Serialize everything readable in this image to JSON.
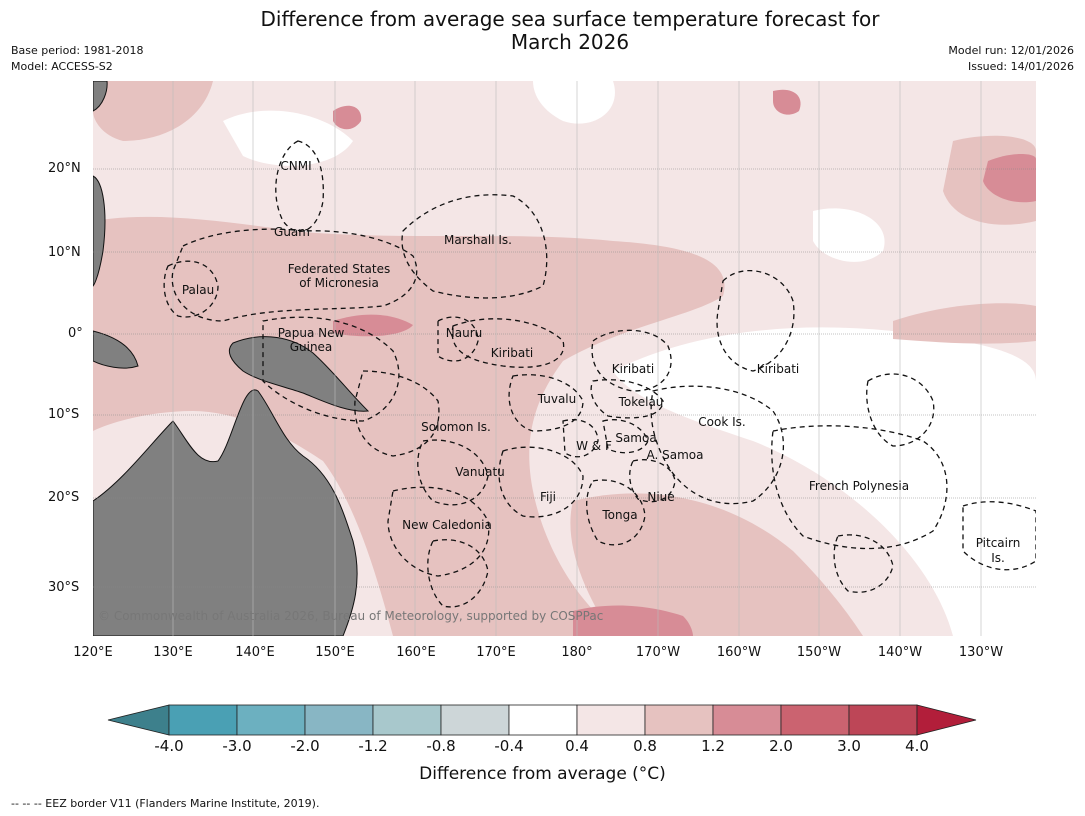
{
  "title_line1": "Difference from average sea surface temperature forecast for",
  "title_line2": "March 2026",
  "meta_left": [
    "Base period: 1981-2018",
    "Model: ACCESS-S2"
  ],
  "meta_right": [
    "Model run: 12/01/2026",
    "Issued: 14/01/2026"
  ],
  "lat_labels": [
    "20°N",
    "10°N",
    "0°",
    "10°S",
    "20°S",
    "30°S"
  ],
  "lon_labels": [
    "120°E",
    "130°E",
    "140°E",
    "150°E",
    "160°E",
    "170°E",
    "180°",
    "170°W",
    "160°W",
    "150°W",
    "140°W",
    "130°W"
  ],
  "places": [
    "CNMI",
    "Guam",
    "Marshall Is.",
    "Federated States",
    "of Micronesia",
    "Palau",
    "Papua New",
    "Guinea",
    "Nauru",
    "Kiribati",
    "Kiribati",
    "Kiribati",
    "Tuvalu",
    "Tokelau",
    "Solomon Is.",
    "W & F",
    "Samoa",
    "A. Samoa",
    "Cook Is.",
    "Vanuatu",
    "Fiji",
    "Niue",
    "Tonga",
    "New Caledonia",
    "French Polynesia",
    "Pitcairn",
    "Is."
  ],
  "copyright": "© Commonwealth of Australia 2026, Bureau of Meteorology, supported by COSPPac",
  "colorbar": {
    "labels": [
      "-4.0",
      "-3.0",
      "-2.0",
      "-1.2",
      "-0.8",
      "-0.4",
      "0.4",
      "0.8",
      "1.2",
      "2.0",
      "3.0",
      "4.0"
    ],
    "colors": [
      "#3d808c",
      "#4aa0b4",
      "#6cb0c0",
      "#88b6c4",
      "#a8c8cc",
      "#cdd6d8",
      "#ffffff",
      "#f4e6e6",
      "#e6c2c0",
      "#d78c96",
      "#cb6370",
      "#bd4657",
      "#b21e3a"
    ],
    "title": "Difference from average (°C)"
  },
  "source_note": "--  --  -- EEZ border V11 (Flanders Marine Institute, 2019)."
}
